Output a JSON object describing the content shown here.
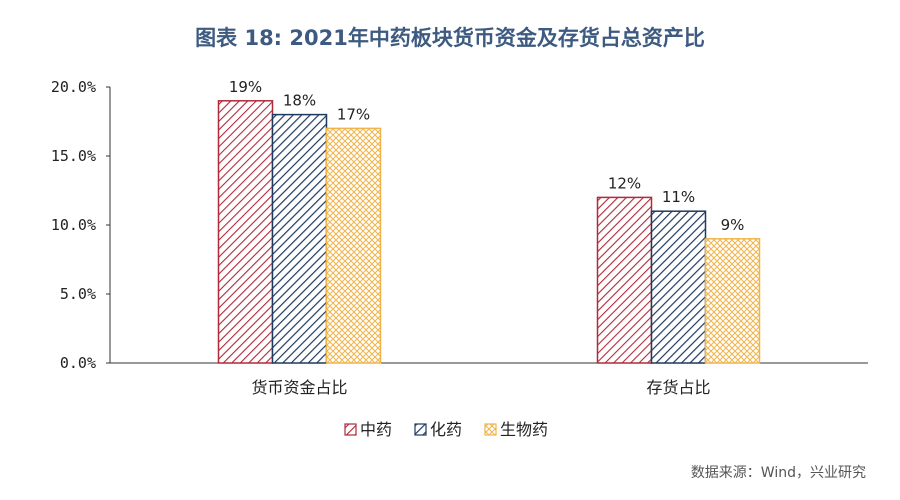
{
  "chart_data": {
    "type": "bar",
    "title": "图表 18: 2021年中药板块货币资金及存货占总资产比",
    "categories": [
      "货币资金占比",
      "存货占比"
    ],
    "series": [
      {
        "name": "中药",
        "values": [
          19,
          12
        ],
        "labels": [
          "19%",
          "12%"
        ]
      },
      {
        "name": "化药",
        "values": [
          18,
          11
        ],
        "labels": [
          "18%",
          "11%"
        ]
      },
      {
        "name": "生物药",
        "values": [
          17,
          9
        ],
        "labels": [
          "17%",
          "9%"
        ]
      }
    ],
    "yticks": [
      "0.0%",
      "5.0%",
      "10.0%",
      "15.0%",
      "20.0%"
    ],
    "ylim": [
      0,
      20
    ],
    "grid": false,
    "legend_position": "bottom",
    "colors": [
      "#b02a3a",
      "#1f3a5f",
      "#f0b44a"
    ]
  },
  "source": "数据来源：Wind，兴业研究"
}
